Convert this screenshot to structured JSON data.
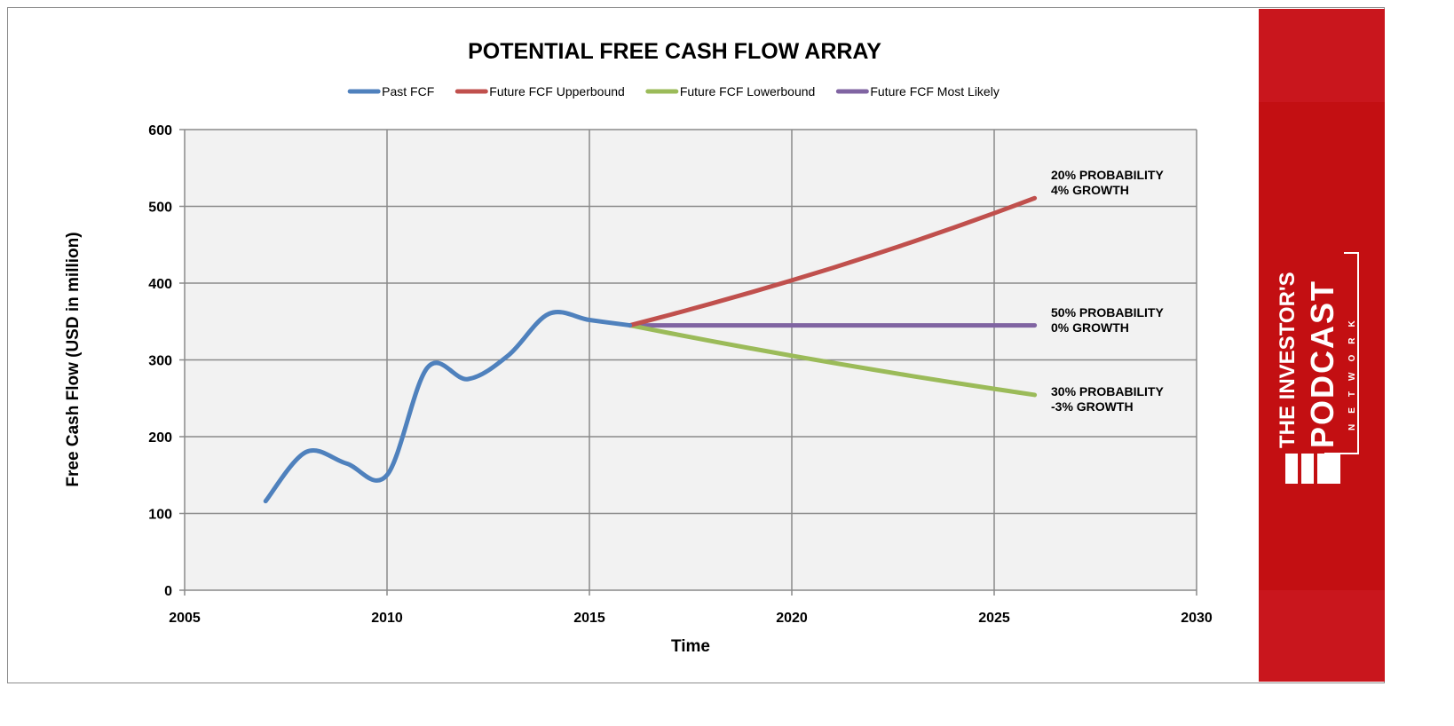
{
  "chart_data": {
    "type": "line",
    "title": "POTENTIAL FREE CASH FLOW ARRAY",
    "xlabel": "Time",
    "ylabel": "Free Cash Flow (USD in million)",
    "xlim": [
      2005,
      2030
    ],
    "ylim": [
      0,
      600
    ],
    "xticks": [
      2005,
      2010,
      2015,
      2020,
      2025,
      2030
    ],
    "yticks": [
      0,
      100,
      200,
      300,
      400,
      500,
      600
    ],
    "grid": true,
    "legend_position": "top",
    "series": [
      {
        "name": "Past FCF",
        "color": "#4f81bd",
        "smooth": true,
        "x": [
          2007,
          2008,
          2009,
          2010,
          2011,
          2012,
          2013,
          2014,
          2015,
          2016
        ],
        "y": [
          116,
          180,
          165,
          150,
          290,
          275,
          306,
          360,
          352,
          345
        ]
      },
      {
        "name": "Future FCF Upperbound",
        "color": "#c0504d",
        "growth": 0.04,
        "x": [
          2016,
          2017,
          2018,
          2019,
          2020,
          2021,
          2022,
          2023,
          2024,
          2025,
          2026
        ],
        "y": [
          345,
          358.8,
          373.2,
          388.1,
          403.6,
          419.7,
          436.5,
          454.0,
          472.2,
          491.1,
          510.7
        ]
      },
      {
        "name": "Future FCF Lowerbound",
        "color": "#9bbb59",
        "growth": -0.03,
        "x": [
          2016,
          2017,
          2018,
          2019,
          2020,
          2021,
          2022,
          2023,
          2024,
          2025,
          2026
        ],
        "y": [
          345,
          334.7,
          324.6,
          314.9,
          305.4,
          296.3,
          287.4,
          278.7,
          270.4,
          262.3,
          254.4
        ]
      },
      {
        "name": "Future FCF Most Likely",
        "color": "#8064a2",
        "growth": 0,
        "x": [
          2016,
          2026
        ],
        "y": [
          345,
          345
        ]
      }
    ],
    "annotations": [
      {
        "lines": [
          "20% PROBABILITY",
          "4% GROWTH"
        ],
        "x": 2026,
        "y": 510
      },
      {
        "lines": [
          "50% PROBABILITY",
          "0% GROWTH"
        ],
        "x": 2026,
        "y": 345
      },
      {
        "lines": [
          "30% PROBABILITY",
          "-3% GROWTH"
        ],
        "x": 2026,
        "y": 255
      }
    ]
  },
  "logo": {
    "text": "THE INVESTOR'S PODCAST NETWORK"
  }
}
